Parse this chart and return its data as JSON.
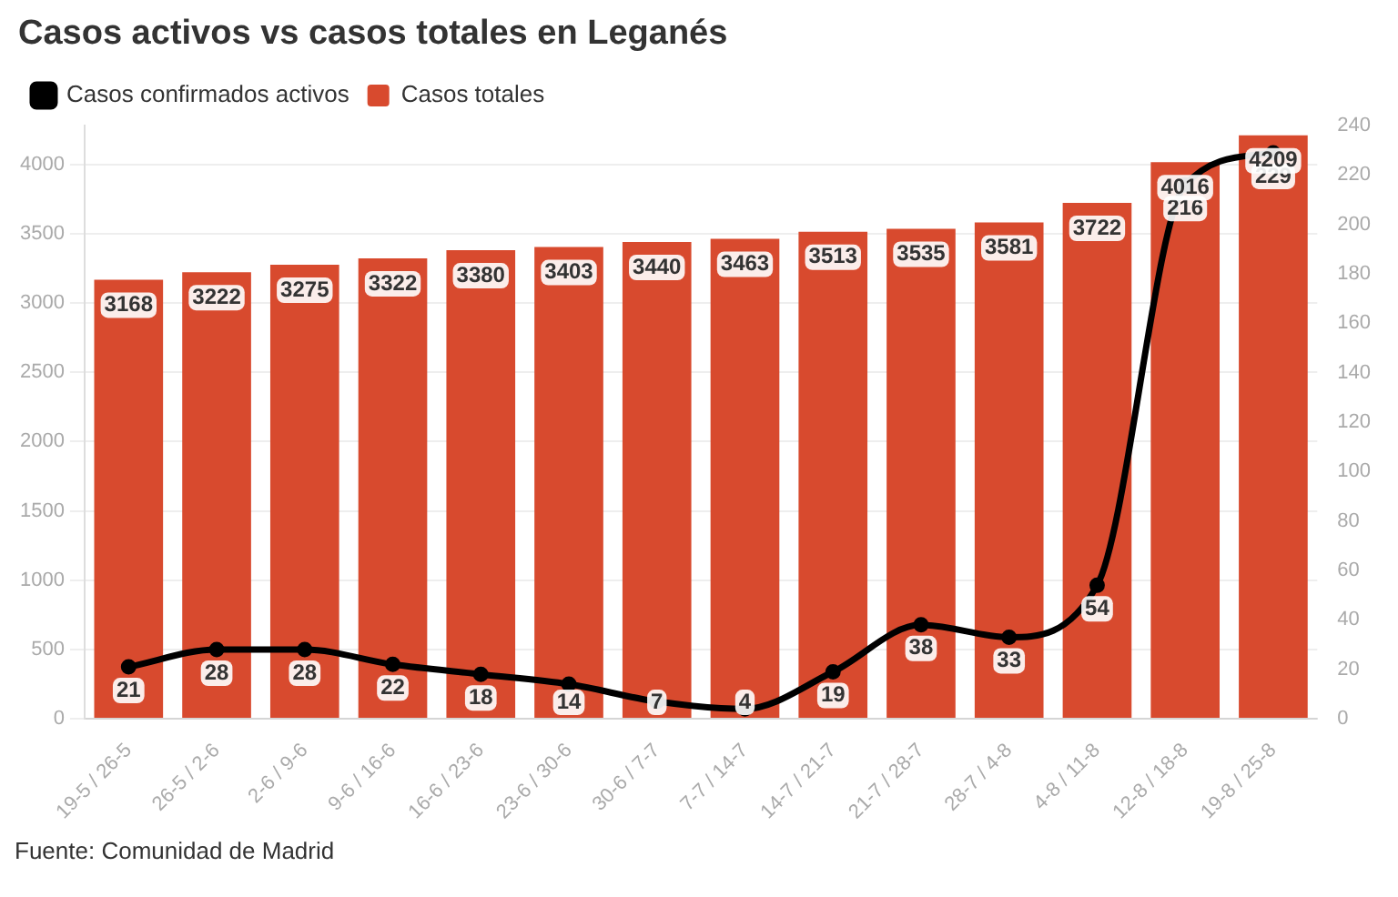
{
  "chart_data": {
    "type": "bar",
    "title": "Casos activos vs casos totales en Leganés",
    "categories": [
      "19-5 / 26-5",
      "26-5 / 2-6",
      "2-6 / 9-6",
      "9-6 / 16-6",
      "16-6 / 23-6",
      "23-6 / 30-6",
      "30-6 / 7-7",
      "7-7 / 14-7",
      "14-7 / 21-7",
      "21-7 / 28-7",
      "28-7 / 4-8",
      "4-8 / 11-8",
      "12-8 / 18-8",
      "19-8 / 25-8"
    ],
    "series": [
      {
        "name": "Casos confirmados activos",
        "type": "line",
        "axis": "y2",
        "color": "#000000",
        "values": [
          21,
          28,
          28,
          22,
          18,
          14,
          7,
          4,
          19,
          38,
          33,
          54,
          216,
          229
        ]
      },
      {
        "name": "Casos totales",
        "color": "#d84a2e",
        "values": [
          3168,
          3222,
          3275,
          3322,
          3380,
          3403,
          3440,
          3463,
          3513,
          3535,
          3581,
          3722,
          4016,
          4209
        ]
      }
    ],
    "ylim": [
      0,
      4280
    ],
    "yticks": [
      0,
      500,
      1000,
      1500,
      2000,
      2500,
      3000,
      3500,
      4000
    ],
    "y2lim": [
      0,
      240
    ],
    "y2ticks": [
      0,
      20,
      40,
      60,
      80,
      100,
      120,
      140,
      160,
      180,
      200,
      220,
      240
    ],
    "grid": "y",
    "legend": "top left",
    "marker": "circle",
    "data_labels": true,
    "annotations": [
      "Fuente: Comunidad de Madrid"
    ]
  }
}
